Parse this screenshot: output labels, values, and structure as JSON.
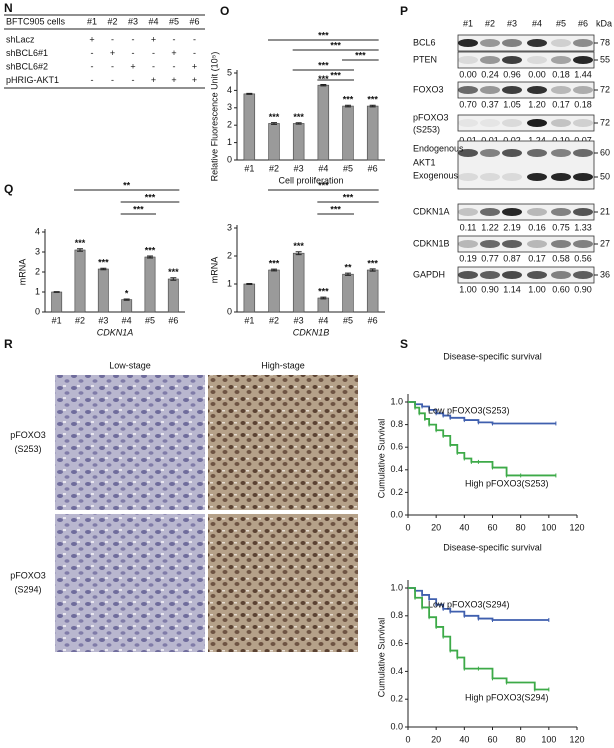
{
  "table": {
    "letter": "N",
    "header": [
      "BFTC905 cells",
      "#1",
      "#2",
      "#3",
      "#4",
      "#5",
      "#6"
    ],
    "rows": [
      [
        "shLacz",
        "+",
        "-",
        "-",
        "+",
        "-",
        "-"
      ],
      [
        "shBCL6#1",
        "-",
        "+",
        "-",
        "-",
        "+",
        "-"
      ],
      [
        "shBCL6#2",
        "-",
        "-",
        "+",
        "-",
        "-",
        "+"
      ],
      [
        "pHRIG-AKT1",
        "-",
        "-",
        "-",
        "+",
        "+",
        "+"
      ]
    ]
  },
  "blot": {
    "letter": "P",
    "lanes": [
      "#1",
      "#2",
      "#3",
      "#4",
      "#5",
      "#6"
    ],
    "unit": "kDa",
    "rows": [
      {
        "label": [
          "BCL6"
        ],
        "kda": [
          "78"
        ]
      },
      {
        "label": [
          "PTEN"
        ],
        "kda": [
          "55"
        ],
        "values": [
          "0.00",
          "0.24",
          "0.96",
          "0.00",
          "0.18",
          "1.44"
        ]
      },
      {
        "label": [
          "FOXO3"
        ],
        "kda": [
          "72"
        ],
        "values": [
          "0.70",
          "0.37",
          "1.05",
          "1.20",
          "0.17",
          "0.18"
        ]
      },
      {
        "label": [
          "pFOXO3",
          "(S253)"
        ],
        "kda": [
          "72"
        ],
        "values": [
          "0.01",
          "0.01",
          "0.02",
          "1.24",
          "0.10",
          "0.07"
        ]
      },
      {
        "label": [
          "Endogenous",
          "AKT1",
          "Exogenous"
        ],
        "kda": [
          "60",
          "50"
        ]
      },
      {
        "label": [
          "CDKN1A"
        ],
        "kda": [
          "21"
        ],
        "values": [
          "0.11",
          "1.22",
          "2.19",
          "0.16",
          "0.75",
          "1.33"
        ]
      },
      {
        "label": [
          "CDKN1B"
        ],
        "kda": [
          "27"
        ],
        "values": [
          "0.19",
          "0.77",
          "0.87",
          "0.17",
          "0.58",
          "0.56"
        ]
      },
      {
        "label": [
          "GAPDH"
        ],
        "kda": [
          "36"
        ],
        "values": [
          "1.00",
          "0.90",
          "1.14",
          "1.00",
          "0.60",
          "0.90"
        ]
      }
    ]
  },
  "ihc": {
    "letter": "R",
    "columns": [
      "Low-stage",
      "High-stage"
    ],
    "rows": [
      [
        "pFOXO3",
        "(S253)"
      ],
      [
        "pFOXO3",
        "(S294)"
      ]
    ]
  },
  "chart_data": [
    {
      "type": "bar",
      "panel_label": "O",
      "ylabel": "Relative Fluorescence Unit (10⁵)",
      "xlabel": "Cell proliferation",
      "categories": [
        "#1",
        "#2",
        "#3",
        "#4",
        "#5",
        "#6"
      ],
      "values": [
        3.8,
        2.1,
        2.1,
        4.3,
        3.1,
        3.1
      ],
      "errors": [
        0.03,
        0.05,
        0.04,
        0.04,
        0.05,
        0.05
      ],
      "annotations": [
        null,
        "***",
        "***",
        "***",
        "***",
        "***"
      ],
      "brackets": [
        {
          "from": "#2",
          "to": "#6",
          "label": "***"
        },
        {
          "from": "#3",
          "to": "#6",
          "label": "***"
        },
        {
          "from": "#5",
          "to": "#6",
          "label": "***"
        },
        {
          "from": "#3",
          "to": "#5",
          "label": "***"
        },
        {
          "from": "#4",
          "to": "#5",
          "label": "***"
        }
      ],
      "color": "#9a9a9a",
      "ylim": [
        0,
        5
      ],
      "yticks": [
        0,
        1,
        2,
        3,
        4,
        5
      ]
    },
    {
      "type": "bar",
      "panel_label": "Q",
      "ylabel": "mRNA",
      "xlabel": "CDKN1A",
      "categories": [
        "#1",
        "#2",
        "#3",
        "#4",
        "#5",
        "#6"
      ],
      "values": [
        1.0,
        3.1,
        2.15,
        0.62,
        2.75,
        1.65
      ],
      "errors": [
        0.02,
        0.06,
        0.04,
        0.03,
        0.05,
        0.06
      ],
      "annotations": [
        null,
        "***",
        "***",
        "*",
        "***",
        "***"
      ],
      "brackets": [
        {
          "from": "#2",
          "to": "#6",
          "label": "**"
        },
        {
          "from": "#4",
          "to": "#6",
          "label": "***"
        },
        {
          "from": "#4",
          "to": "#5",
          "label": "***"
        }
      ],
      "color": "#9a9a9a",
      "ylim": [
        0,
        4
      ],
      "yticks": [
        0,
        1,
        2,
        3,
        4
      ]
    },
    {
      "type": "bar",
      "ylabel": "mRNA",
      "xlabel": "CDKN1B",
      "categories": [
        "#1",
        "#2",
        "#3",
        "#4",
        "#5",
        "#6"
      ],
      "values": [
        1.0,
        1.5,
        2.1,
        0.5,
        1.35,
        1.5
      ],
      "errors": [
        0.02,
        0.03,
        0.05,
        0.03,
        0.04,
        0.04
      ],
      "annotations": [
        null,
        "***",
        "***",
        "***",
        "**",
        "***"
      ],
      "brackets": [
        {
          "from": "#2",
          "to": "#6",
          "label": "***"
        },
        {
          "from": "#4",
          "to": "#6",
          "label": "***"
        },
        {
          "from": "#4",
          "to": "#5",
          "label": "***"
        }
      ],
      "color": "#9a9a9a",
      "ylim": [
        0,
        3
      ],
      "yticks": [
        0,
        1,
        2,
        3
      ]
    },
    {
      "type": "line",
      "panel_label": "S",
      "title": "Disease-specific survival",
      "ylabel": "Cumulative Survival",
      "xlim": [
        0,
        120
      ],
      "xticks": [
        0,
        20,
        40,
        60,
        80,
        100,
        120
      ],
      "ylim": [
        0,
        1
      ],
      "yticks": [
        {
          "value": 0,
          "label": "0.0"
        },
        {
          "value": 0.2,
          "label": "0.2"
        },
        {
          "value": 0.4,
          "label": "0.4"
        },
        {
          "value": 0.6,
          "label": "0.6"
        },
        {
          "value": 0.8,
          "label": "0.8"
        },
        {
          "value": 1,
          "label": "1.0"
        }
      ],
      "series": [
        {
          "name": "Low pFOXO3(S253)",
          "color": "#3f5fae",
          "x": [
            0,
            5,
            10,
            15,
            20,
            25,
            30,
            40,
            50,
            60,
            105
          ],
          "values": [
            1,
            0.98,
            0.96,
            0.93,
            0.9,
            0.88,
            0.86,
            0.84,
            0.82,
            0.81,
            0.81
          ]
        },
        {
          "name": "High pFOXO3(S253)",
          "color": "#3daa48",
          "x": [
            0,
            5,
            8,
            12,
            15,
            20,
            25,
            30,
            35,
            40,
            45,
            50,
            60,
            70,
            80,
            105
          ],
          "values": [
            1,
            0.95,
            0.9,
            0.85,
            0.8,
            0.75,
            0.7,
            0.62,
            0.55,
            0.5,
            0.47,
            0.47,
            0.42,
            0.35,
            0.35,
            0.35
          ]
        }
      ]
    },
    {
      "type": "line",
      "title": "Disease-specific survival",
      "ylabel": "Cumulative Survival",
      "xlim": [
        0,
        120
      ],
      "xticks": [
        0,
        20,
        40,
        60,
        80,
        100,
        120
      ],
      "ylim": [
        0,
        1
      ],
      "yticks": [
        {
          "value": 0,
          "label": "0.0"
        },
        {
          "value": 0.2,
          "label": "0.2"
        },
        {
          "value": 0.4,
          "label": "0.4"
        },
        {
          "value": 0.6,
          "label": "0.6"
        },
        {
          "value": 0.8,
          "label": "0.8"
        },
        {
          "value": 1,
          "label": "1.0"
        }
      ],
      "series": [
        {
          "name": "Low pFOXO3(S294)",
          "color": "#3f5fae",
          "x": [
            0,
            5,
            10,
            15,
            20,
            25,
            30,
            40,
            50,
            60,
            100
          ],
          "values": [
            1,
            0.98,
            0.95,
            0.92,
            0.88,
            0.85,
            0.83,
            0.8,
            0.78,
            0.77,
            0.77
          ]
        },
        {
          "name": "High pFOXO3(S294)",
          "color": "#3daa48",
          "x": [
            0,
            5,
            10,
            15,
            20,
            25,
            30,
            35,
            40,
            50,
            60,
            70,
            90,
            100
          ],
          "values": [
            1,
            0.93,
            0.86,
            0.79,
            0.72,
            0.65,
            0.55,
            0.5,
            0.42,
            0.42,
            0.35,
            0.32,
            0.27,
            0.27
          ]
        }
      ]
    }
  ]
}
